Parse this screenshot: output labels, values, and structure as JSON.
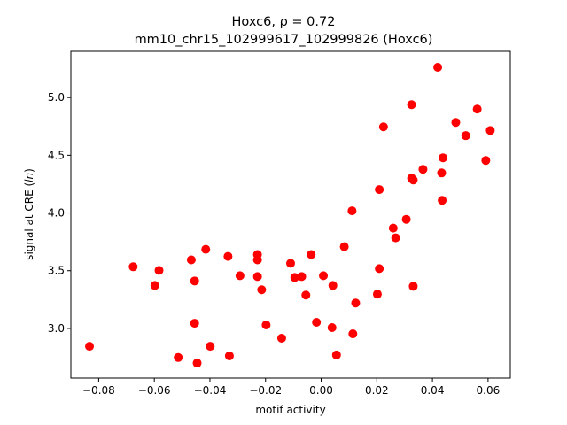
{
  "chart_data": {
    "type": "scatter",
    "title_line1": "Hoxc6, ρ = 0.72",
    "title_line2": "mm10_chr15_102999617_102999826 (Hoxc6)",
    "xlabel": "motif activity",
    "ylabel": "signal at CRE (ln)",
    "xlim": [
      -0.09,
      0.068
    ],
    "ylim": [
      2.57,
      5.4
    ],
    "xticks": [
      -0.08,
      -0.06,
      -0.04,
      -0.02,
      0.0,
      0.02,
      0.04,
      0.06
    ],
    "xtick_labels": [
      "−0.08",
      "−0.06",
      "−0.04",
      "−0.02",
      "0.00",
      "0.02",
      "0.04",
      "0.06"
    ],
    "yticks": [
      3.0,
      3.5,
      4.0,
      4.5,
      5.0
    ],
    "ytick_labels": [
      "3.0",
      "3.5",
      "4.0",
      "4.5",
      "5.0"
    ],
    "grid": false,
    "marker_color": "#ff0000",
    "points": [
      [
        -0.0833,
        2.845
      ],
      [
        -0.0676,
        3.534
      ],
      [
        -0.0598,
        3.372
      ],
      [
        -0.0583,
        3.503
      ],
      [
        -0.0514,
        2.748
      ],
      [
        -0.0467,
        3.594
      ],
      [
        -0.0455,
        3.411
      ],
      [
        -0.0455,
        3.045
      ],
      [
        -0.0446,
        2.7
      ],
      [
        -0.0415,
        3.685
      ],
      [
        -0.0399,
        2.845
      ],
      [
        -0.0335,
        3.624
      ],
      [
        -0.033,
        2.762
      ],
      [
        -0.0292,
        3.457
      ],
      [
        -0.0229,
        3.64
      ],
      [
        -0.0229,
        3.594
      ],
      [
        -0.0229,
        3.449
      ],
      [
        -0.0214,
        3.335
      ],
      [
        -0.0198,
        3.03
      ],
      [
        -0.0142,
        2.915
      ],
      [
        -0.011,
        3.564
      ],
      [
        -0.0095,
        3.441
      ],
      [
        -0.007,
        3.449
      ],
      [
        -0.0055,
        3.289
      ],
      [
        -0.0036,
        3.64
      ],
      [
        -0.0017,
        3.053
      ],
      [
        0.0008,
        3.457
      ],
      [
        0.0039,
        3.007
      ],
      [
        0.0042,
        3.372
      ],
      [
        0.0055,
        2.77
      ],
      [
        0.0083,
        3.708
      ],
      [
        0.0111,
        4.019
      ],
      [
        0.0114,
        2.953
      ],
      [
        0.0124,
        3.22
      ],
      [
        0.0202,
        3.297
      ],
      [
        0.0209,
        4.203
      ],
      [
        0.0209,
        3.518
      ],
      [
        0.0224,
        4.746
      ],
      [
        0.0259,
        3.869
      ],
      [
        0.0268,
        3.785
      ],
      [
        0.0306,
        3.945
      ],
      [
        0.0325,
        4.302
      ],
      [
        0.0325,
        4.938
      ],
      [
        0.0331,
        3.365
      ],
      [
        0.0331,
        4.286
      ],
      [
        0.0366,
        4.378
      ],
      [
        0.0419,
        5.262
      ],
      [
        0.0433,
        4.347
      ],
      [
        0.0435,
        4.11
      ],
      [
        0.0438,
        4.478
      ],
      [
        0.0484,
        4.785
      ],
      [
        0.052,
        4.67
      ],
      [
        0.0561,
        4.9
      ],
      [
        0.0592,
        4.455
      ],
      [
        0.0608,
        4.715
      ]
    ]
  }
}
